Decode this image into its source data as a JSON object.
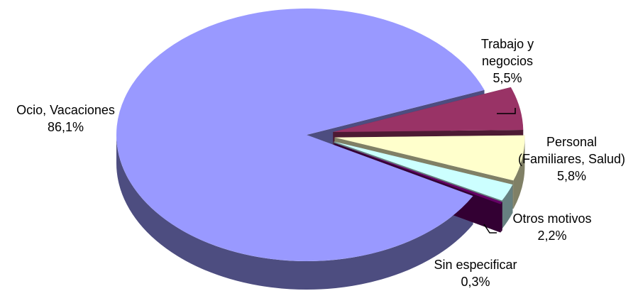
{
  "chart_data": {
    "type": "pie",
    "title": "",
    "slices": [
      {
        "label_lines": [
          "Ocio, Vacaciones"
        ],
        "value_label": "86,1%",
        "value": 86.1,
        "color": "#9999FF",
        "side_color": "#4D4D80",
        "exploded": false
      },
      {
        "label_lines": [
          "Trabajo y",
          "negocios"
        ],
        "value_label": "5,5%",
        "value": 5.5,
        "color": "#993366",
        "side_color": "#4D1A33",
        "exploded": true
      },
      {
        "label_lines": [
          "Personal",
          "(Familiares, Salud)"
        ],
        "value_label": "5,8%",
        "value": 5.8,
        "color": "#FFFFCC",
        "side_color": "#808066",
        "exploded": true
      },
      {
        "label_lines": [
          "Otros motivos"
        ],
        "value_label": "2,2%",
        "value": 2.2,
        "color": "#CCFFFF",
        "side_color": "#668080",
        "exploded": true
      },
      {
        "label_lines": [
          "Sin especificar"
        ],
        "value_label": "0,3%",
        "value": 0.3,
        "color": "#660066",
        "side_color": "#330033",
        "exploded": true
      }
    ]
  }
}
